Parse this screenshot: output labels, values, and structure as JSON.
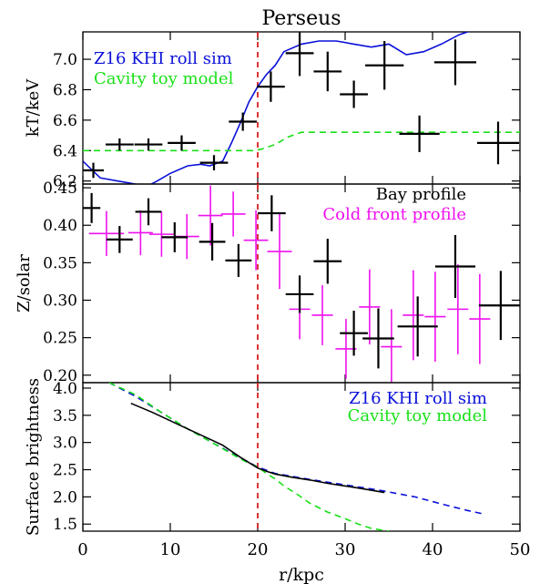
{
  "title": "Perseus",
  "xlabel": "r/kpc",
  "marker_line_color": "#d62020",
  "marker_x": 20,
  "chart_data": [
    {
      "type": "line",
      "panel": "top",
      "ylabel": "kT/keV",
      "xlim": [
        0,
        50
      ],
      "ylim": [
        6.18,
        7.18
      ],
      "yticks": [
        6.2,
        6.4,
        6.6,
        6.8,
        7.0
      ],
      "ytick_labels": [
        "6.2",
        "6.4",
        "6.6",
        "6.8",
        "7.0"
      ],
      "legend": [
        {
          "label": "Z16 KHI roll sim",
          "color": "#0a10d8"
        },
        {
          "label": "Cavity toy model",
          "color": "#19e019"
        }
      ],
      "series": [
        {
          "name": "Z16 KHI roll sim",
          "style": "solid",
          "color": "#0a10d8",
          "x": [
            0,
            2,
            4,
            6,
            7.5,
            8.5,
            10,
            12,
            13.5,
            14.5,
            16,
            17,
            18,
            19,
            20,
            21,
            22,
            23,
            25,
            27,
            29,
            31,
            33,
            35,
            37,
            39,
            41,
            43,
            45,
            49
          ],
          "y": [
            6.33,
            6.22,
            6.2,
            6.18,
            6.17,
            6.2,
            6.25,
            6.3,
            6.31,
            6.3,
            6.33,
            6.45,
            6.58,
            6.72,
            6.82,
            6.9,
            6.96,
            7.05,
            7.1,
            7.12,
            7.12,
            7.1,
            7.08,
            7.1,
            7.03,
            7.05,
            7.1,
            7.16,
            7.2,
            7.28
          ]
        },
        {
          "name": "Cavity toy model",
          "style": "dashed",
          "color": "#19e019",
          "x": [
            0,
            19.5,
            20.5,
            22,
            23.5,
            25,
            50
          ],
          "y": [
            6.4,
            6.4,
            6.41,
            6.44,
            6.49,
            6.52,
            6.52
          ]
        },
        {
          "style": "errorbar",
          "color": "#000000",
          "x": [
            1.2,
            4.2,
            7.5,
            11.3,
            15.0,
            18.3,
            21.5,
            24.8,
            28.0,
            31.0,
            34.5,
            38.5,
            42.6,
            47.5
          ],
          "y": [
            6.27,
            6.44,
            6.44,
            6.45,
            6.32,
            6.59,
            6.82,
            7.04,
            6.92,
            6.77,
            6.96,
            6.51,
            6.98,
            6.45
          ],
          "xerr": [
            1.2,
            1.6,
            1.6,
            1.6,
            1.6,
            1.6,
            1.6,
            1.6,
            1.6,
            1.6,
            2.2,
            2.3,
            2.4,
            2.4
          ],
          "yerr": [
            0.05,
            0.04,
            0.04,
            0.05,
            0.05,
            0.06,
            0.1,
            0.15,
            0.13,
            0.09,
            0.16,
            0.12,
            0.15,
            0.14
          ]
        }
      ]
    },
    {
      "type": "scatter",
      "panel": "middle",
      "ylabel": "Z/solar",
      "xlim": [
        0,
        50
      ],
      "ylim": [
        0.19,
        0.455
      ],
      "yticks": [
        0.2,
        0.25,
        0.3,
        0.35,
        0.4,
        0.45
      ],
      "ytick_labels": [
        "0.20",
        "0.25",
        "0.30",
        "0.35",
        "0.40",
        "0.45"
      ],
      "legend": [
        {
          "label": "Bay profile",
          "color": "#000000"
        },
        {
          "label": "Cold front profile",
          "color": "#ee10ee"
        }
      ],
      "series": [
        {
          "name": "Cold front profile",
          "color": "#ee10ee",
          "x": [
            2.7,
            6.6,
            9.0,
            11.9,
            14.6,
            17.2,
            19.8,
            22.5,
            24.8,
            27.4,
            30.1,
            32.8,
            35.3,
            37.8,
            40.3,
            42.9,
            45.4
          ],
          "y": [
            0.389,
            0.39,
            0.388,
            0.385,
            0.413,
            0.415,
            0.38,
            0.365,
            0.288,
            0.28,
            0.235,
            0.291,
            0.238,
            0.28,
            0.278,
            0.288,
            0.275
          ],
          "xerr": [
            2.0,
            1.4,
            1.4,
            1.4,
            1.4,
            1.4,
            1.4,
            1.4,
            1.2,
            1.2,
            1.2,
            1.2,
            1.2,
            1.2,
            1.2,
            1.2,
            1.2
          ],
          "yerr": [
            0.03,
            0.03,
            0.03,
            0.03,
            0.04,
            0.03,
            0.04,
            0.05,
            0.04,
            0.04,
            0.04,
            0.05,
            0.05,
            0.06,
            0.06,
            0.06,
            0.06
          ]
        },
        {
          "name": "Bay profile",
          "color": "#000000",
          "x": [
            1.0,
            4.2,
            7.5,
            10.5,
            14.8,
            17.8,
            21.6,
            24.8,
            28.0,
            31.0,
            33.8,
            38.3,
            42.6,
            47.8
          ],
          "y": [
            0.423,
            0.381,
            0.418,
            0.384,
            0.378,
            0.353,
            0.416,
            0.308,
            0.352,
            0.256,
            0.249,
            0.265,
            0.345,
            0.293
          ],
          "xerr": [
            1.0,
            1.5,
            1.5,
            1.5,
            1.5,
            1.5,
            1.6,
            1.6,
            1.6,
            1.6,
            1.8,
            2.3,
            2.3,
            2.5
          ],
          "yerr": [
            0.02,
            0.018,
            0.018,
            0.02,
            0.025,
            0.022,
            0.024,
            0.025,
            0.03,
            0.03,
            0.04,
            0.04,
            0.042,
            0.046
          ]
        }
      ]
    },
    {
      "type": "line",
      "panel": "bottom",
      "ylabel": "Surface brightness",
      "xlim": [
        0,
        50
      ],
      "ylim": [
        1.37,
        4.1
      ],
      "yticks": [
        1.5,
        2.0,
        2.5,
        3.0,
        3.5,
        4.0
      ],
      "ytick_labels": [
        "1.5",
        "2.0",
        "2.5",
        "3.0",
        "3.5",
        "4.0"
      ],
      "legend": [
        {
          "label": "Z16 KHI roll sim",
          "color": "#0a10d8"
        },
        {
          "label": "Cavity toy model",
          "color": "#19e019"
        }
      ],
      "series": [
        {
          "name": "Z16 KHI roll sim",
          "style": "dashed",
          "color": "#0a10d8",
          "x": [
            3,
            6,
            9,
            12,
            15,
            18,
            20,
            22,
            26,
            30,
            34,
            38,
            41,
            44,
            46
          ],
          "y": [
            4.1,
            3.85,
            3.55,
            3.25,
            2.98,
            2.72,
            2.55,
            2.43,
            2.32,
            2.22,
            2.12,
            2.0,
            1.87,
            1.75,
            1.68
          ]
        },
        {
          "name": "Cavity toy model",
          "style": "dashed",
          "color": "#19e019",
          "x": [
            3,
            6,
            9,
            12,
            15,
            18,
            19,
            20,
            21,
            22,
            23,
            24.5,
            26,
            28,
            30,
            31.5,
            33,
            35
          ],
          "y": [
            4.1,
            3.88,
            3.55,
            3.25,
            2.98,
            2.7,
            2.62,
            2.55,
            2.43,
            2.33,
            2.2,
            2.05,
            1.88,
            1.72,
            1.6,
            1.5,
            1.42,
            1.37
          ]
        },
        {
          "name": "",
          "style": "solid",
          "color": "#000000",
          "x": [
            5.5,
            8,
            10,
            12,
            14,
            16,
            18,
            20,
            21,
            22,
            24,
            26,
            28,
            30,
            32,
            34.5
          ],
          "y": [
            3.72,
            3.55,
            3.4,
            3.25,
            3.1,
            2.95,
            2.73,
            2.53,
            2.47,
            2.42,
            2.36,
            2.31,
            2.25,
            2.2,
            2.15,
            2.08
          ]
        }
      ]
    }
  ],
  "xticks": [
    0,
    10,
    20,
    30,
    40,
    50
  ],
  "xtick_labels": [
    "0",
    "10",
    "20",
    "30",
    "40",
    "50"
  ]
}
